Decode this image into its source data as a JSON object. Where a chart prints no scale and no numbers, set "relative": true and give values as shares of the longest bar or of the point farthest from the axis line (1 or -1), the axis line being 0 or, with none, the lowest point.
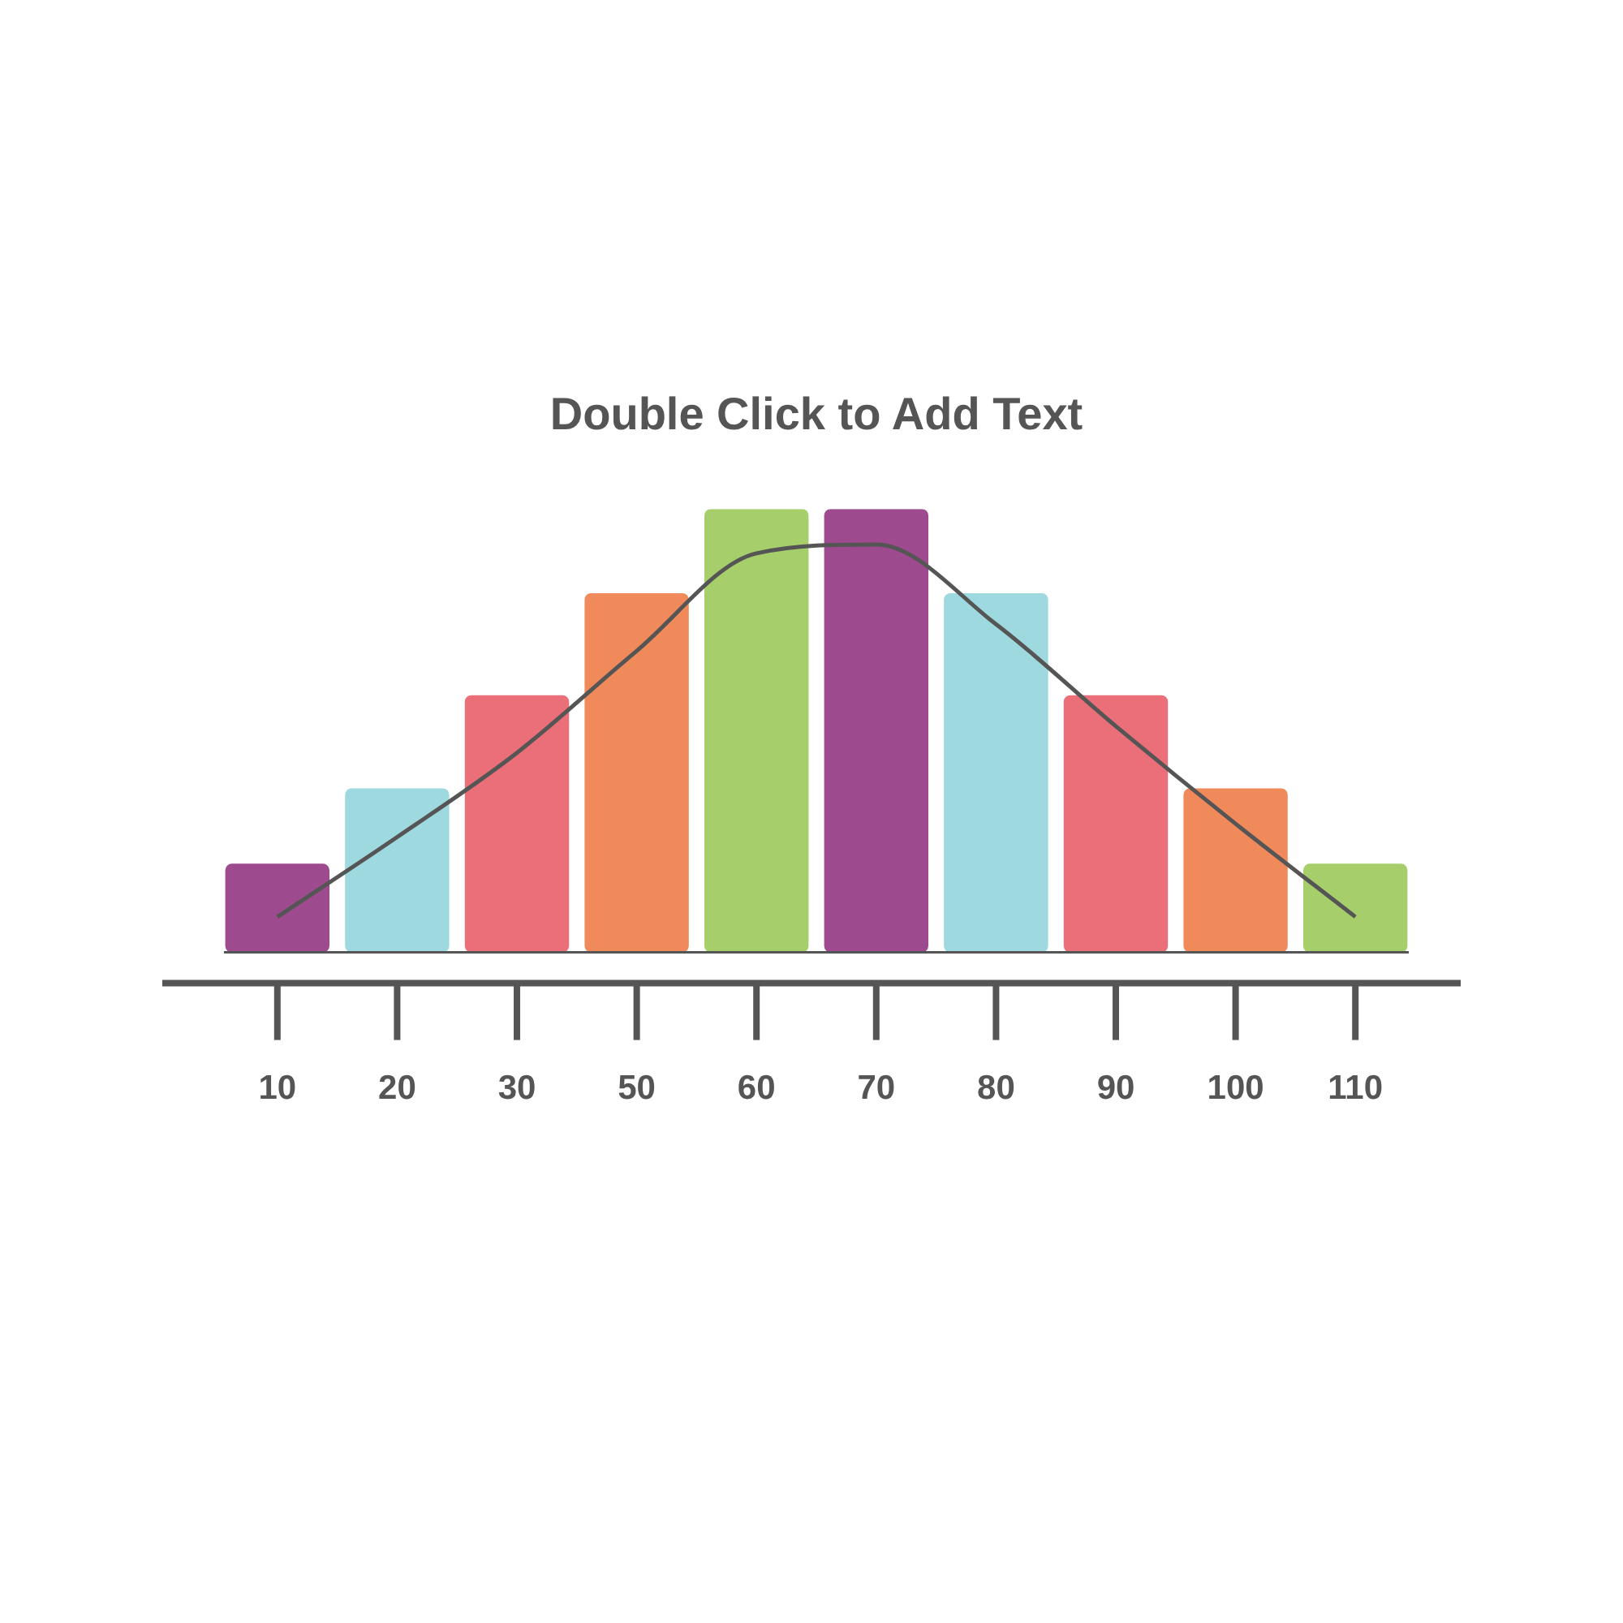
{
  "chart_data": {
    "type": "bar",
    "title": "Double Click to Add Text",
    "relative": true,
    "legend": false,
    "grid": false,
    "categories": [
      "10",
      "20",
      "30",
      "50",
      "60",
      "70",
      "80",
      "90",
      "100",
      "110"
    ],
    "series": [
      {
        "colors": [
          "#9e4a8f",
          "#9ed9e0",
          "#eb6f78",
          "#f08a5a",
          "#a6cf6b",
          "#9e4a8f",
          "#9ed9e0",
          "#eb6f78",
          "#f08a5a",
          "#a6cf6b"
        ],
        "values": [
          0.2,
          0.37,
          0.58,
          0.81,
          1,
          1,
          0.81,
          0.58,
          0.37,
          0.2
        ]
      },
      {
        "type": "line",
        "color": "#555555",
        "values": [
          0.08,
          0.26,
          0.45,
          0.68,
          0.9,
          0.92,
          0.74,
          0.51,
          0.29,
          0.08
        ]
      }
    ]
  }
}
